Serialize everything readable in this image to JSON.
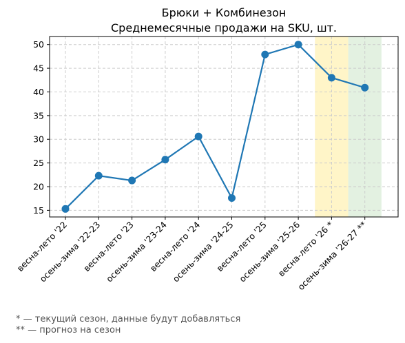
{
  "chart_data": {
    "type": "line",
    "title": "Брюки + Комбинезон",
    "subtitle": "Среднемесячные продажи на SKU, шт.",
    "xlabel": "",
    "ylabel": "",
    "categories": [
      "весна-лето '22",
      "осень-зима '22-23",
      "весна-лето '23",
      "осень-зима '23-24",
      "весна-лето '24",
      "осень-зима '24-25",
      "весна-лето '25",
      "осень-зима '25-26",
      "весна-лето '26 *",
      "осень-зима '26-27 **"
    ],
    "series": [
      {
        "values": [
          15.3,
          22.3,
          21.3,
          25.7,
          30.6,
          17.6,
          47.9,
          50.0,
          43.0,
          40.9
        ]
      }
    ],
    "ylim": [
      13.6,
      51.7
    ],
    "yticks": [
      15,
      20,
      25,
      30,
      35,
      40,
      45,
      50
    ],
    "grid": true,
    "line_color": "#1f77b4",
    "highlight_bands": [
      {
        "category_index": 8,
        "color": "#fff5c8"
      },
      {
        "category_index": 9,
        "color": "#e3f1e1"
      }
    ]
  },
  "footnotes": [
    "* — текущий сезон, данные будут добавляться",
    "** — прогноз на сезон"
  ]
}
